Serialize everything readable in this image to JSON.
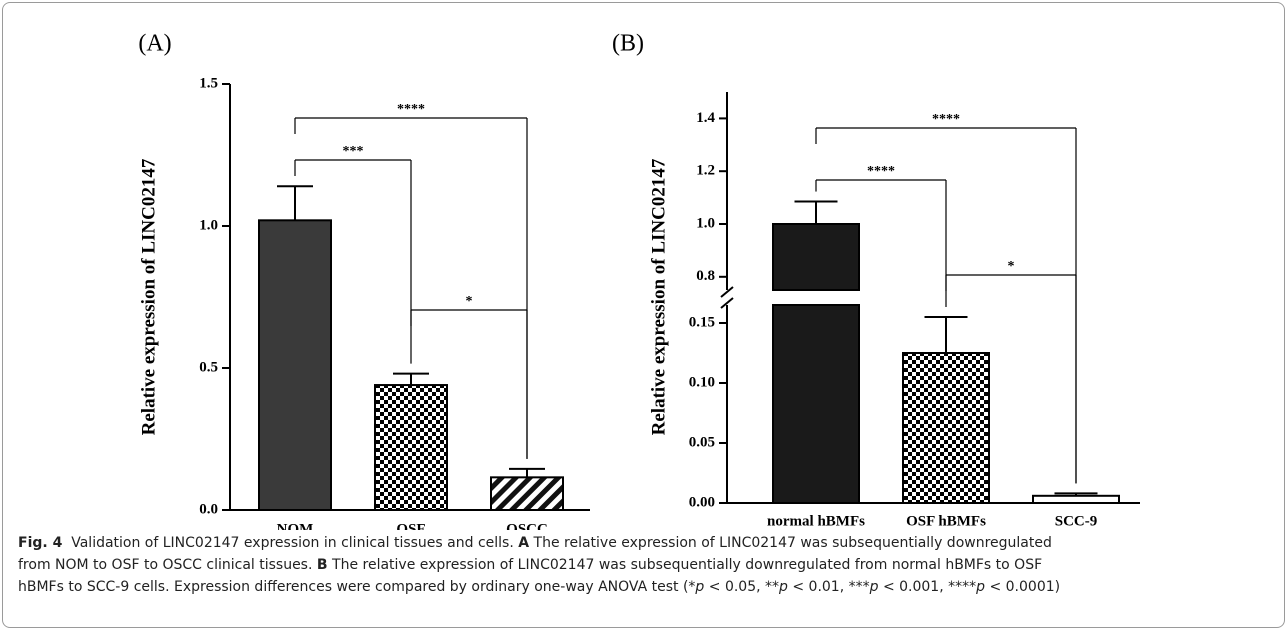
{
  "chart_data": [
    {
      "type": "bar",
      "panel": "(A)",
      "ylabel": "Relative expression of LINC02147",
      "categories": [
        "NOM",
        "OSF",
        "OSCC"
      ],
      "values": [
        1.02,
        0.44,
        0.115
      ],
      "errors": [
        0.12,
        0.04,
        0.03
      ],
      "fills": [
        "solid",
        "checker",
        "hatch"
      ],
      "color": "#3a3a3a",
      "ylim": [
        0,
        1.5
      ],
      "yticks": [
        {
          "value": 0,
          "label": "0.0"
        },
        0.5,
        {
          "value": 1,
          "label": "1.0"
        },
        1.5
      ],
      "annotations": [
        {
          "label": "****",
          "from": 0,
          "to": 2
        },
        {
          "label": "***",
          "from": 0,
          "to": 1
        },
        {
          "label": "*",
          "from": 1,
          "to": 2
        }
      ]
    },
    {
      "type": "bar",
      "panel": "(B)",
      "ylabel": "Relative expression of LINC02147",
      "categories": [
        "normal hBMFs",
        "OSF hBMFs",
        "SCC-9"
      ],
      "values": [
        1.0,
        0.125,
        0.006
      ],
      "errors": [
        0.085,
        0.03,
        0.002
      ],
      "fills": [
        "solid",
        "checker",
        "none"
      ],
      "color": "#1a1a1a",
      "ylim": [
        0,
        1.5
      ],
      "ybreak": [
        0.165,
        0.75
      ],
      "yticks": [
        {
          "value": 0,
          "label": "0.00"
        },
        0.05,
        {
          "value": 0.1,
          "label": "0.10"
        },
        0.15,
        0.8,
        {
          "value": 1,
          "label": "1.0"
        },
        1.2,
        1.4
      ],
      "annotations": [
        {
          "label": "****",
          "from": 0,
          "to": 2
        },
        {
          "label": "****",
          "from": 0,
          "to": 1
        },
        {
          "label": "*",
          "from": 1,
          "to": 2
        }
      ]
    }
  ],
  "caption": {
    "lines": [
      [
        {
          "text": "Fig. 4",
          "bold": true
        },
        {
          "text": "  Validation of LINC02147 expression in clinical tissues and cells. "
        },
        {
          "text": "A",
          "bold": true
        },
        {
          "text": " The relative expression of LINC02147 was subsequentially downregulated"
        }
      ],
      [
        {
          "text": "from NOM to OSF to OSCC clinical tissues. "
        },
        {
          "text": "B",
          "bold": true
        },
        {
          "text": " The relative expression of LINC02147 was subsequentially downregulated from normal hBMFs to OSF"
        }
      ],
      [
        {
          "text": "hBMFs to SCC-9 cells. Expression differences were compared by ordinary one-way ANOVA test (*"
        },
        {
          "text": "p",
          "italic": true
        },
        {
          "text": " < 0.05, **"
        },
        {
          "text": "p",
          "italic": true
        },
        {
          "text": " < 0.01, ***"
        },
        {
          "text": "p",
          "italic": true
        },
        {
          "text": " < 0.001, ****"
        },
        {
          "text": "p",
          "italic": true
        },
        {
          "text": " < 0.0001)"
        }
      ]
    ]
  }
}
